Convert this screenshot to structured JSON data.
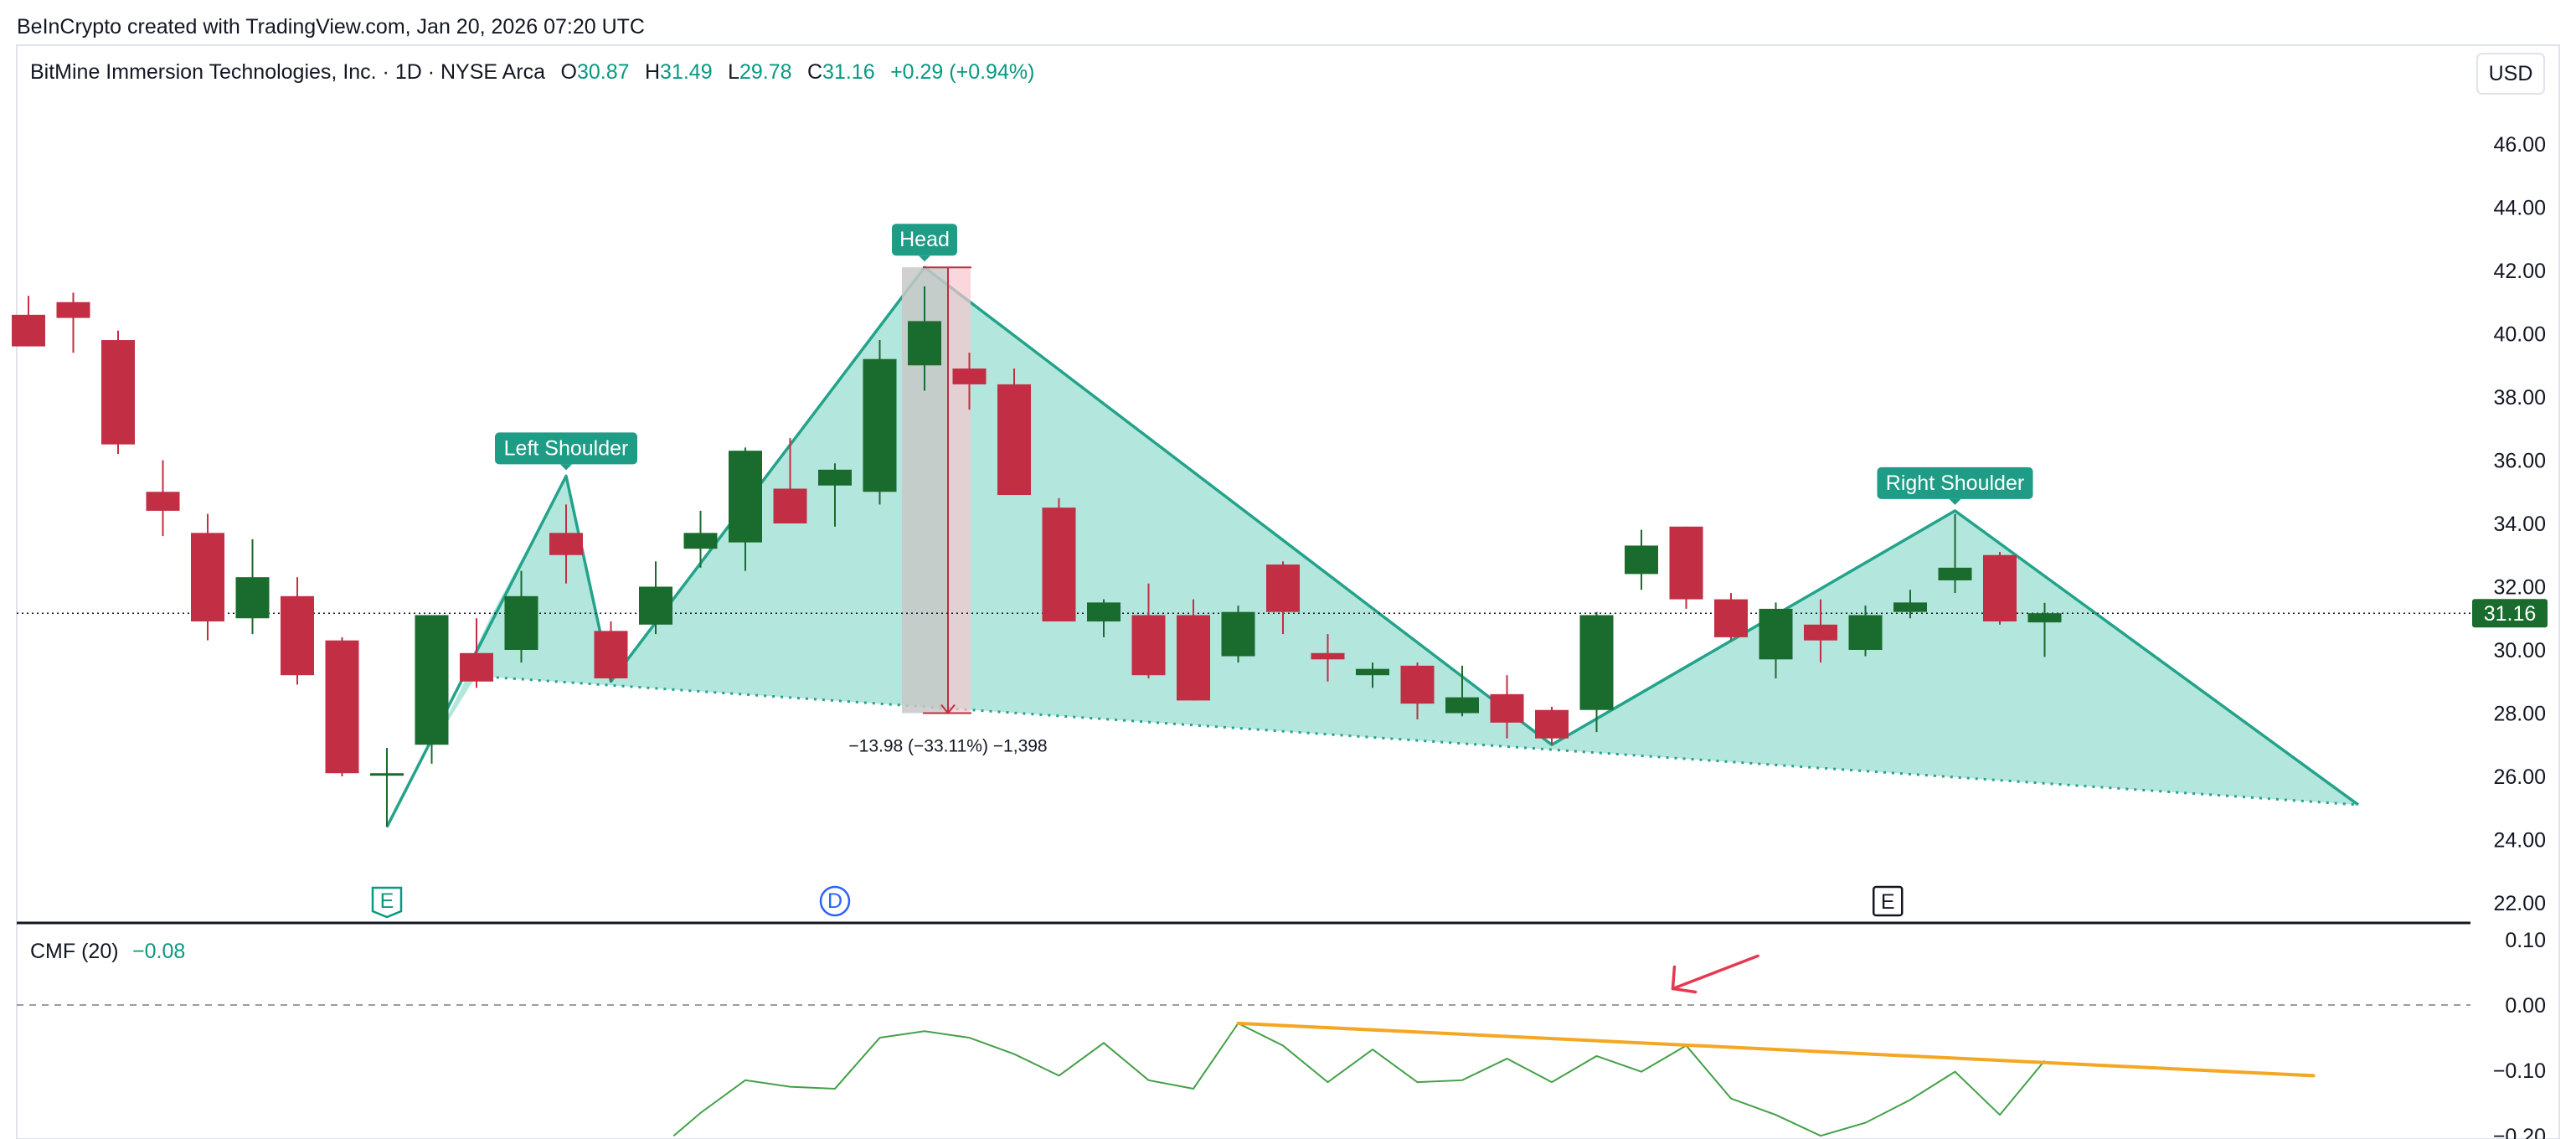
{
  "attribution": "BeInCrypto created with TradingView.com, Jan 20, 2026 07:20 UTC",
  "header": {
    "symbol": "BitMine Immersion Technologies, Inc. · 1D · NYSE Arca",
    "o_label": "O",
    "o_value": "30.87",
    "h_label": "H",
    "h_value": "31.49",
    "l_label": "L",
    "l_value": "29.78",
    "c_label": "C",
    "c_value": "31.16",
    "change": "+0.29 (+0.94%)"
  },
  "currency": "USD",
  "last_price_label": "31.16",
  "colors": {
    "up": "#1a6b2e",
    "down": "#c22e43",
    "pattern_line": "#23a38a",
    "pattern_fill": "#b3e6dd",
    "cmf_line": "#43a047",
    "trend_line": "#f5a623",
    "arrow": "#e53950",
    "badge_green": "#089981",
    "badge_blue": "#2962ff"
  },
  "chart_data": [
    {
      "type": "candlestick",
      "title": "BitMine Immersion Technologies, Inc. · 1D · NYSE Arca",
      "price_axis": {
        "ticks": [
          "46.00",
          "44.00",
          "42.00",
          "40.00",
          "38.00",
          "36.00",
          "34.00",
          "32.00",
          "30.00",
          "28.00",
          "26.00",
          "24.00",
          "22.00"
        ],
        "range": [
          21.5,
          47.0
        ]
      },
      "candles": [
        {
          "o": 40.6,
          "h": 41.2,
          "l": 39.6,
          "c": 39.6
        },
        {
          "o": 41.0,
          "h": 41.3,
          "l": 39.4,
          "c": 40.5
        },
        {
          "o": 39.8,
          "h": 40.1,
          "l": 36.2,
          "c": 36.5
        },
        {
          "o": 35.0,
          "h": 36.0,
          "l": 33.6,
          "c": 34.4
        },
        {
          "o": 33.7,
          "h": 34.3,
          "l": 30.3,
          "c": 30.9
        },
        {
          "o": 31.0,
          "h": 33.5,
          "l": 30.5,
          "c": 32.3
        },
        {
          "o": 31.7,
          "h": 32.3,
          "l": 28.9,
          "c": 29.2
        },
        {
          "o": 30.3,
          "h": 30.4,
          "l": 26.0,
          "c": 26.1
        },
        {
          "o": 26.1,
          "h": 26.9,
          "l": 24.4,
          "c": 26.1
        },
        {
          "o": 27.0,
          "h": 31.1,
          "l": 26.4,
          "c": 31.1
        },
        {
          "o": 29.9,
          "h": 31.0,
          "l": 28.8,
          "c": 29.0
        },
        {
          "o": 30.0,
          "h": 32.5,
          "l": 29.6,
          "c": 31.7
        },
        {
          "o": 33.7,
          "h": 34.6,
          "l": 32.1,
          "c": 33.0
        },
        {
          "o": 30.6,
          "h": 30.9,
          "l": 29.0,
          "c": 29.1
        },
        {
          "o": 30.8,
          "h": 32.8,
          "l": 30.5,
          "c": 32.0
        },
        {
          "o": 33.2,
          "h": 34.4,
          "l": 32.6,
          "c": 33.7
        },
        {
          "o": 33.4,
          "h": 36.4,
          "l": 32.5,
          "c": 36.3
        },
        {
          "o": 35.1,
          "h": 36.7,
          "l": 34.0,
          "c": 34.0
        },
        {
          "o": 35.2,
          "h": 35.9,
          "l": 33.9,
          "c": 35.7
        },
        {
          "o": 35.0,
          "h": 39.8,
          "l": 34.6,
          "c": 39.2
        },
        {
          "o": 39.0,
          "h": 41.5,
          "l": 38.2,
          "c": 40.4
        },
        {
          "o": 38.9,
          "h": 39.4,
          "l": 37.6,
          "c": 38.4
        },
        {
          "o": 38.4,
          "h": 38.9,
          "l": 34.9,
          "c": 34.9
        },
        {
          "o": 34.5,
          "h": 34.8,
          "l": 30.9,
          "c": 30.9
        },
        {
          "o": 30.9,
          "h": 31.6,
          "l": 30.4,
          "c": 31.5
        },
        {
          "o": 31.1,
          "h": 32.1,
          "l": 29.1,
          "c": 29.2
        },
        {
          "o": 31.1,
          "h": 31.6,
          "l": 28.4,
          "c": 28.4
        },
        {
          "o": 29.8,
          "h": 31.4,
          "l": 29.6,
          "c": 31.2
        },
        {
          "o": 32.7,
          "h": 32.8,
          "l": 30.5,
          "c": 31.2
        },
        {
          "o": 29.9,
          "h": 30.5,
          "l": 29.0,
          "c": 29.7
        },
        {
          "o": 29.2,
          "h": 29.6,
          "l": 28.8,
          "c": 29.4
        },
        {
          "o": 29.5,
          "h": 29.6,
          "l": 27.8,
          "c": 28.3
        },
        {
          "o": 28.0,
          "h": 29.5,
          "l": 27.9,
          "c": 28.5
        },
        {
          "o": 28.6,
          "h": 29.2,
          "l": 27.2,
          "c": 27.7
        },
        {
          "o": 28.1,
          "h": 28.2,
          "l": 27.0,
          "c": 27.2
        },
        {
          "o": 28.1,
          "h": 31.2,
          "l": 27.4,
          "c": 31.1
        },
        {
          "o": 32.4,
          "h": 33.8,
          "l": 31.9,
          "c": 33.3
        },
        {
          "o": 33.9,
          "h": 33.9,
          "l": 31.3,
          "c": 31.6
        },
        {
          "o": 31.6,
          "h": 31.8,
          "l": 30.3,
          "c": 30.4
        },
        {
          "o": 29.7,
          "h": 31.5,
          "l": 29.1,
          "c": 31.3
        },
        {
          "o": 30.8,
          "h": 31.6,
          "l": 29.6,
          "c": 30.3
        },
        {
          "o": 30.0,
          "h": 31.4,
          "l": 29.8,
          "c": 31.1
        },
        {
          "o": 31.2,
          "h": 31.9,
          "l": 31.0,
          "c": 31.5
        },
        {
          "o": 32.2,
          "h": 34.3,
          "l": 31.8,
          "c": 32.6
        },
        {
          "o": 33.0,
          "h": 33.1,
          "l": 30.8,
          "c": 30.9
        },
        {
          "o": 30.87,
          "h": 31.49,
          "l": 29.78,
          "c": 31.16
        }
      ],
      "pattern": {
        "name": "Head and Shoulders",
        "labels": [
          "Left Shoulder",
          "Head",
          "Right Shoulder"
        ],
        "outline": [
          {
            "bar": 8,
            "price": 24.4
          },
          {
            "bar": 12,
            "price": 35.5
          },
          {
            "bar": 13,
            "price": 29.0
          },
          {
            "bar": 20,
            "price": 42.1
          },
          {
            "bar": 34,
            "price": 27.0
          },
          {
            "bar": 43,
            "price": 34.4
          },
          {
            "bar": 52,
            "price": 25.1
          }
        ],
        "neckline": [
          {
            "bar": 9.7,
            "price": 29.2
          },
          {
            "bar": 52,
            "price": 25.1
          }
        ]
      },
      "measure": {
        "bar": 20,
        "from": 42.1,
        "to": 28.0,
        "label": "−13.98 (−33.11%) −1,398"
      },
      "last_price": 31.16,
      "event_badges": [
        {
          "bar": 8,
          "text": "E",
          "style": "green"
        },
        {
          "bar": 18,
          "text": "D",
          "style": "blue"
        },
        {
          "bar": 41.5,
          "text": "E",
          "style": "dark"
        }
      ]
    },
    {
      "type": "line",
      "title": "CMF (20)",
      "current_value": "−0.08",
      "y_axis": {
        "ticks": [
          "0.10",
          "0.00",
          "−0.10",
          "−0.20"
        ],
        "range": [
          -0.2,
          0.1
        ]
      },
      "series": [
        {
          "values": [
            {
              "bar": 14.4,
              "v": -0.2
            },
            {
              "bar": 15,
              "v": -0.165
            },
            {
              "bar": 16,
              "v": -0.115
            },
            {
              "bar": 17,
              "v": -0.125
            },
            {
              "bar": 18,
              "v": -0.128
            },
            {
              "bar": 19,
              "v": -0.05
            },
            {
              "bar": 20,
              "v": -0.04
            },
            {
              "bar": 21,
              "v": -0.05
            },
            {
              "bar": 22,
              "v": -0.075
            },
            {
              "bar": 23,
              "v": -0.108
            },
            {
              "bar": 24,
              "v": -0.058
            },
            {
              "bar": 25,
              "v": -0.115
            },
            {
              "bar": 26,
              "v": -0.128
            },
            {
              "bar": 27,
              "v": -0.028
            },
            {
              "bar": 28,
              "v": -0.062
            },
            {
              "bar": 29,
              "v": -0.118
            },
            {
              "bar": 30,
              "v": -0.068
            },
            {
              "bar": 31,
              "v": -0.118
            },
            {
              "bar": 32,
              "v": -0.115
            },
            {
              "bar": 33,
              "v": -0.082
            },
            {
              "bar": 34,
              "v": -0.118
            },
            {
              "bar": 35,
              "v": -0.078
            },
            {
              "bar": 36,
              "v": -0.102
            },
            {
              "bar": 37,
              "v": -0.062
            },
            {
              "bar": 38,
              "v": -0.143
            },
            {
              "bar": 39,
              "v": -0.168
            },
            {
              "bar": 40,
              "v": -0.2
            },
            {
              "bar": 41,
              "v": -0.18
            },
            {
              "bar": 42,
              "v": -0.145
            },
            {
              "bar": 43,
              "v": -0.102
            },
            {
              "bar": 44,
              "v": -0.168
            },
            {
              "bar": 45,
              "v": -0.085
            }
          ]
        }
      ],
      "trendline": [
        {
          "bar": 27,
          "v": -0.028
        },
        {
          "bar": 51,
          "v": -0.108
        }
      ],
      "arrow": {
        "from": {
          "bar": 38.6,
          "v": 0.075
        },
        "to": {
          "bar": 36.7,
          "v": 0.025
        }
      }
    }
  ]
}
